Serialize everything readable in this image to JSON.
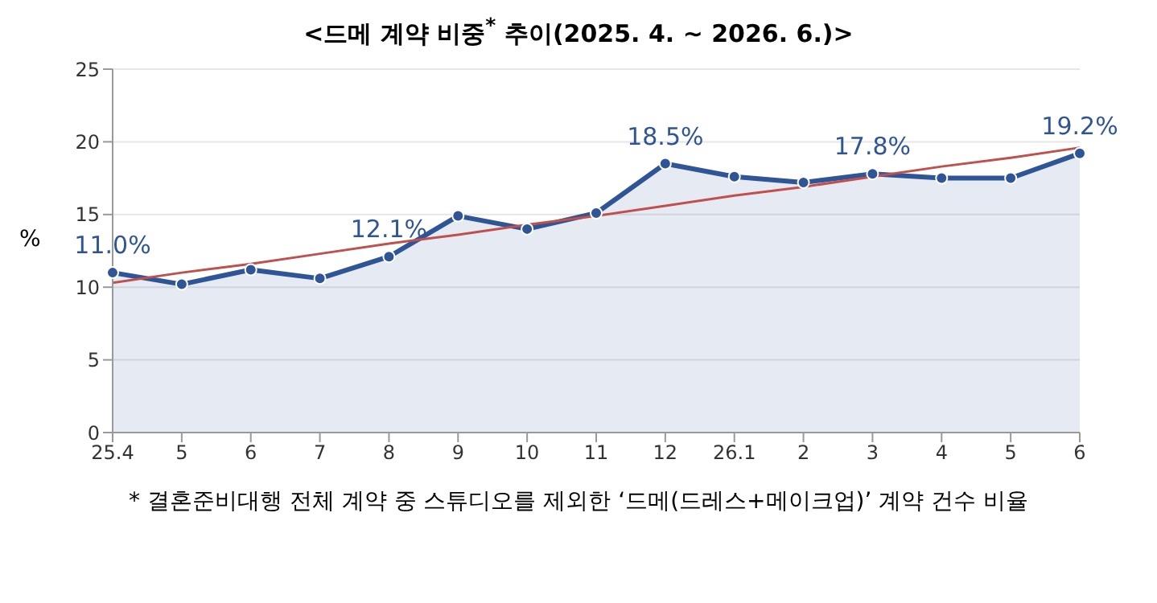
{
  "chart_data": {
    "type": "area",
    "title": "<드메 계약 비중$^{*}$ 추이(2025. 4.  ~  2026. 6.)>",
    "ylabel": "%",
    "categories": [
      "25.4",
      "5",
      "6",
      "7",
      "8",
      "9",
      "10",
      "11",
      "12",
      "26.1",
      "2",
      "3",
      "4",
      "5",
      "6"
    ],
    "series": [
      {
        "color": "#2f5597",
        "values": [
          11.0,
          10.2,
          11.2,
          10.6,
          12.1,
          14.9,
          14.0,
          15.1,
          18.5,
          17.6,
          17.2,
          17.8,
          17.5,
          17.5,
          19.2
        ],
        "value_labels": [
          "11.0%",
          null,
          null,
          null,
          "12.1%",
          null,
          null,
          null,
          "18.5%",
          null,
          null,
          "17.8%",
          null,
          null,
          "19.2%"
        ]
      },
      {
        "type": "line",
        "color": "#c0504d",
        "marker": "none",
        "values": [
          10.3,
          11.0,
          11.6,
          12.3,
          13.0,
          13.6,
          14.3,
          14.9,
          15.6,
          16.3,
          16.9,
          17.6,
          18.3,
          18.9,
          19.6
        ]
      }
    ],
    "ylim": [
      0,
      25
    ],
    "yticks": [
      0,
      5,
      10,
      15,
      20,
      25
    ],
    "grid": "y",
    "legend": false,
    "marker": "circle",
    "annotations": [
      "* 결혼준비대행 전체 계약 중 스튜디오를 제외한 ‘드메(드레스+메이크업)’ 계약 건수 비율"
    ]
  }
}
